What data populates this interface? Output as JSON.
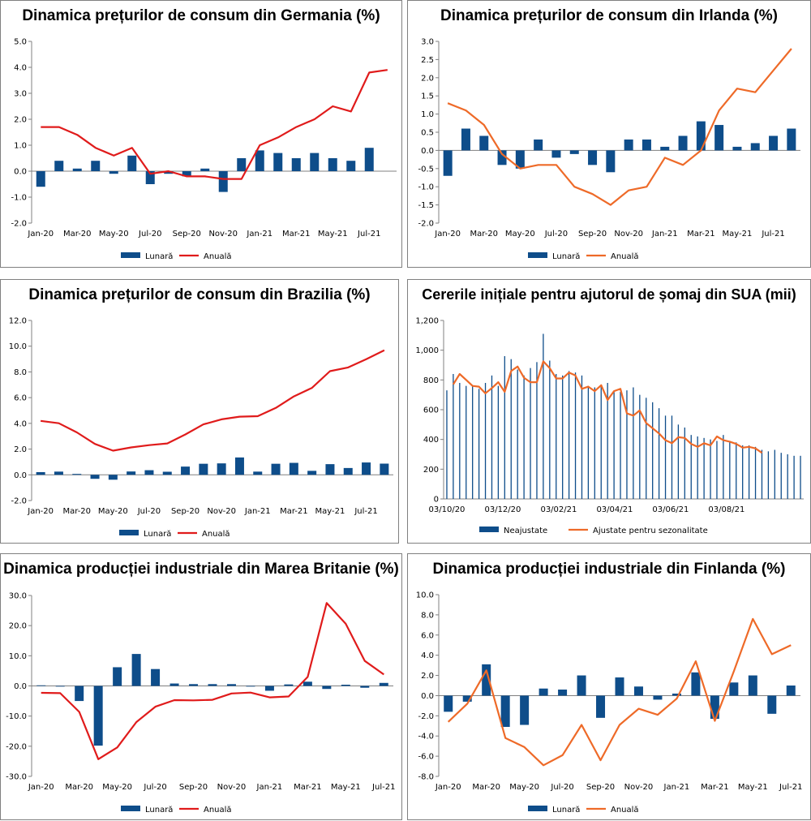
{
  "colors": {
    "bar": "#0e4d8a",
    "line_red": "#e01b1b",
    "line_orange": "#ee6a28"
  },
  "panels": [
    {
      "title": "Dinamica prețurilor de consum din Germania (%)",
      "chart_data": {
        "type": "bar+line",
        "categories": [
          "Jan-20",
          "Feb-20",
          "Mar-20",
          "Apr-20",
          "May-20",
          "Jun-20",
          "Jul-20",
          "Aug-20",
          "Sep-20",
          "Oct-20",
          "Nov-20",
          "Dec-20",
          "Jan-21",
          "Feb-21",
          "Mar-21",
          "Apr-21",
          "May-21",
          "Jun-21",
          "Jul-21",
          "Aug-21"
        ],
        "tick_labels": [
          "Jan-20",
          "Mar-20",
          "May-20",
          "Jul-20",
          "Sep-20",
          "Nov-20",
          "Jan-21",
          "Mar-21",
          "May-21",
          "Jul-21"
        ],
        "y_ticks": [
          "5.0",
          "4.0",
          "3.0",
          "2.0",
          "1.0",
          "0.0",
          "-1.0",
          "-2.0"
        ],
        "ylim": [
          -2,
          5
        ],
        "series": [
          {
            "name": "Lunară",
            "kind": "bar",
            "values": [
              -0.6,
              0.4,
              0.1,
              0.4,
              -0.1,
              0.6,
              -0.5,
              -0.1,
              -0.2,
              0.1,
              -0.8,
              0.5,
              0.8,
              0.7,
              0.5,
              0.7,
              0.5,
              0.4,
              0.9,
              null
            ]
          },
          {
            "name": "Anuală",
            "kind": "line",
            "values": [
              1.7,
              1.7,
              1.4,
              0.9,
              0.6,
              0.9,
              -0.1,
              0.0,
              -0.2,
              -0.2,
              -0.3,
              -0.3,
              1.0,
              1.3,
              1.7,
              2.0,
              2.5,
              2.3,
              3.8,
              3.9
            ]
          }
        ],
        "legend": [
          "Lunară",
          "Anuală"
        ]
      }
    },
    {
      "title": "Dinamica prețurilor de consum din Irlanda (%)",
      "chart_data": {
        "type": "bar+line",
        "categories": [
          "Jan-20",
          "Feb-20",
          "Mar-20",
          "Apr-20",
          "May-20",
          "Jun-20",
          "Jul-20",
          "Aug-20",
          "Sep-20",
          "Oct-20",
          "Nov-20",
          "Dec-20",
          "Jan-21",
          "Feb-21",
          "Mar-21",
          "Apr-21",
          "May-21",
          "Jun-21",
          "Jul-21",
          "Aug-21"
        ],
        "tick_labels": [
          "Jan-20",
          "Mar-20",
          "May-20",
          "Jul-20",
          "Sep-20",
          "Nov-20",
          "Jan-21",
          "Mar-21",
          "May-21",
          "Jul-21"
        ],
        "y_ticks": [
          "3.0",
          "2.5",
          "2.0",
          "1.5",
          "1.0",
          "0.5",
          "0.0",
          "-0.5",
          "-1.0",
          "-1.5",
          "-2.0"
        ],
        "ylim": [
          -2,
          3
        ],
        "series": [
          {
            "name": "Lunară",
            "kind": "bar",
            "values": [
              -0.7,
              0.6,
              0.4,
              -0.4,
              -0.5,
              0.3,
              -0.2,
              -0.1,
              -0.4,
              -0.6,
              0.3,
              0.3,
              0.1,
              0.4,
              0.8,
              0.7,
              0.1,
              0.2,
              0.4,
              0.6
            ]
          },
          {
            "name": "Anuală",
            "kind": "line",
            "values": [
              1.3,
              1.1,
              0.7,
              -0.1,
              -0.5,
              -0.4,
              -0.4,
              -1.0,
              -1.2,
              -1.5,
              -1.1,
              -1.0,
              -0.2,
              -0.4,
              0.0,
              1.1,
              1.7,
              1.6,
              2.2,
              2.8
            ]
          }
        ],
        "legend": [
          "Lunară",
          "Anuală"
        ]
      }
    },
    {
      "title": "Dinamica prețurilor de consum din Brazilia (%)",
      "chart_data": {
        "type": "bar+line",
        "categories": [
          "Jan-20",
          "Feb-20",
          "Mar-20",
          "Apr-20",
          "May-20",
          "Jun-20",
          "Jul-20",
          "Aug-20",
          "Sep-20",
          "Oct-20",
          "Nov-20",
          "Dec-20",
          "Jan-21",
          "Feb-21",
          "Mar-21",
          "Apr-21",
          "May-21",
          "Jun-21",
          "Jul-21",
          "Aug-21"
        ],
        "tick_labels": [
          "Jan-20",
          "Mar-20",
          "May-20",
          "Jul-20",
          "Sep-20",
          "Nov-20",
          "Jan-21",
          "Mar-21",
          "May-21",
          "Jul-21"
        ],
        "y_ticks": [
          "12.0",
          "10.0",
          "8.0",
          "6.0",
          "4.0",
          "2.0",
          "0.0",
          "-2.0"
        ],
        "ylim": [
          -2,
          12
        ],
        "series": [
          {
            "name": "Lunară",
            "kind": "bar",
            "values": [
              0.21,
              0.25,
              0.07,
              -0.31,
              -0.38,
              0.26,
              0.36,
              0.24,
              0.64,
              0.86,
              0.89,
              1.35,
              0.25,
              0.86,
              0.93,
              0.31,
              0.83,
              0.53,
              0.96,
              0.87
            ]
          },
          {
            "name": "Anuală",
            "kind": "line",
            "values": [
              4.19,
              4.01,
              3.3,
              2.4,
              1.88,
              2.13,
              2.31,
              2.44,
              3.14,
              3.92,
              4.31,
              4.52,
              4.56,
              5.2,
              6.1,
              6.76,
              8.06,
              8.35,
              8.99,
              9.68
            ]
          }
        ],
        "legend": [
          "Lunară",
          "Anuală"
        ]
      }
    },
    {
      "title": "Cererile inițiale pentru ajutorul de șomaj din SUA (mii)",
      "chart_data": {
        "type": "bar+line",
        "x_start": "03/10/20",
        "tick_labels": [
          "03/10/20",
          "03/12/20",
          "03/02/21",
          "03/04/21",
          "03/06/21",
          "03/08/21"
        ],
        "y_ticks": [
          "1,200",
          "1,000",
          "800",
          "600",
          "400",
          "200",
          "0"
        ],
        "ylim": [
          0,
          1200
        ],
        "series": [
          {
            "name": "Neajustate",
            "kind": "bar",
            "values": [
              730,
              840,
              780,
              760,
              760,
              740,
              780,
              830,
              760,
              960,
              940,
              870,
              830,
              880,
              920,
              1110,
              930,
              840,
              830,
              860,
              850,
              830,
              760,
              750,
              760,
              780,
              720,
              720,
              730,
              750,
              700,
              680,
              650,
              610,
              560,
              560,
              500,
              480,
              430,
              420,
              410,
              400,
              390,
              430,
              390,
              380,
              360,
              360,
              350,
              330,
              320,
              330,
              310,
              300,
              290,
              290
            ]
          },
          {
            "name": "Ajustate pentru sezonalitate",
            "kind": "line",
            "values": [
              770,
              840,
              800,
              760,
              755,
              710,
              745,
              785,
              720,
              860,
              890,
              815,
              785,
              785,
              925,
              880,
              810,
              810,
              850,
              830,
              740,
              755,
              725,
              765,
              665,
              725,
              740,
              575,
              560,
              595,
              510,
              475,
              440,
              395,
              375,
              415,
              410,
              370,
              350,
              375,
              360,
              420,
              395,
              385,
              370,
              345,
              350,
              340,
              310
            ]
          }
        ],
        "legend": [
          "Neajustate",
          "Ajustate pentru sezonalitate"
        ]
      }
    },
    {
      "title": "Dinamica producției industriale din Marea Britanie (%)",
      "chart_data": {
        "type": "bar+line",
        "categories": [
          "Jan-20",
          "Feb-20",
          "Mar-20",
          "Apr-20",
          "May-20",
          "Jun-20",
          "Jul-20",
          "Aug-20",
          "Sep-20",
          "Oct-20",
          "Nov-20",
          "Dec-20",
          "Jan-21",
          "Feb-21",
          "Mar-21",
          "Apr-21",
          "May-21",
          "Jun-21",
          "Jul-21"
        ],
        "tick_labels": [
          "Jan-20",
          "Mar-20",
          "May-20",
          "Jul-20",
          "Sep-20",
          "Nov-20",
          "Jan-21",
          "Mar-21",
          "May-21",
          "Jul-21"
        ],
        "y_ticks": [
          "30.0",
          "20.0",
          "10.0",
          "0.0",
          "-10.0",
          "-20.0",
          "-30.0"
        ],
        "ylim": [
          -30,
          30
        ],
        "series": [
          {
            "name": "Lunară",
            "kind": "bar",
            "values": [
              0.2,
              -0.2,
              -5.0,
              -19.8,
              6.2,
              10.6,
              5.6,
              0.8,
              0.6,
              0.6,
              0.6,
              0.0,
              -1.6,
              0.5,
              1.4,
              -1.0,
              0.4,
              -0.6,
              1.0
            ]
          },
          {
            "name": "Anuală",
            "kind": "line",
            "values": [
              -2.3,
              -2.4,
              -8.6,
              -24.3,
              -20.4,
              -12.0,
              -6.9,
              -4.7,
              -4.8,
              -4.6,
              -2.5,
              -2.2,
              -3.8,
              -3.5,
              3.0,
              27.5,
              20.6,
              8.3,
              3.8
            ]
          }
        ],
        "legend": [
          "Lunară",
          "Anuală"
        ]
      }
    },
    {
      "title": "Dinamica producției industriale din Finlanda (%)",
      "chart_data": {
        "type": "bar+line",
        "categories": [
          "Jan-20",
          "Feb-20",
          "Mar-20",
          "Apr-20",
          "May-20",
          "Jun-20",
          "Jul-20",
          "Aug-20",
          "Sep-20",
          "Oct-20",
          "Nov-20",
          "Dec-20",
          "Jan-21",
          "Feb-21",
          "Mar-21",
          "Apr-21",
          "May-21",
          "Jun-21",
          "Jul-21"
        ],
        "tick_labels": [
          "Jan-20",
          "Mar-20",
          "May-20",
          "Jul-20",
          "Sep-20",
          "Nov-20",
          "Jan-21",
          "Mar-21",
          "May-21",
          "Jul-21"
        ],
        "y_ticks": [
          "10.0",
          "8.0",
          "6.0",
          "4.0",
          "2.0",
          "0.0",
          "-2.0",
          "-4.0",
          "-6.0",
          "-8.0"
        ],
        "ylim": [
          -8,
          10
        ],
        "series": [
          {
            "name": "Lunară",
            "kind": "bar",
            "values": [
              -1.6,
              -0.6,
              3.1,
              -3.1,
              -2.9,
              0.7,
              0.6,
              2.0,
              -2.2,
              1.8,
              0.9,
              -0.4,
              0.2,
              2.3,
              -2.3,
              1.3,
              2.0,
              -1.8,
              1.0
            ]
          },
          {
            "name": "Anuală",
            "kind": "line",
            "values": [
              -2.6,
              -0.8,
              2.5,
              -4.2,
              -5.1,
              -6.9,
              -5.9,
              -2.9,
              -6.4,
              -2.9,
              -1.3,
              -1.9,
              -0.3,
              3.4,
              -2.5,
              2.4,
              7.6,
              4.1,
              5.0
            ]
          }
        ],
        "legend": [
          "Lunară",
          "Anuală"
        ]
      }
    }
  ]
}
